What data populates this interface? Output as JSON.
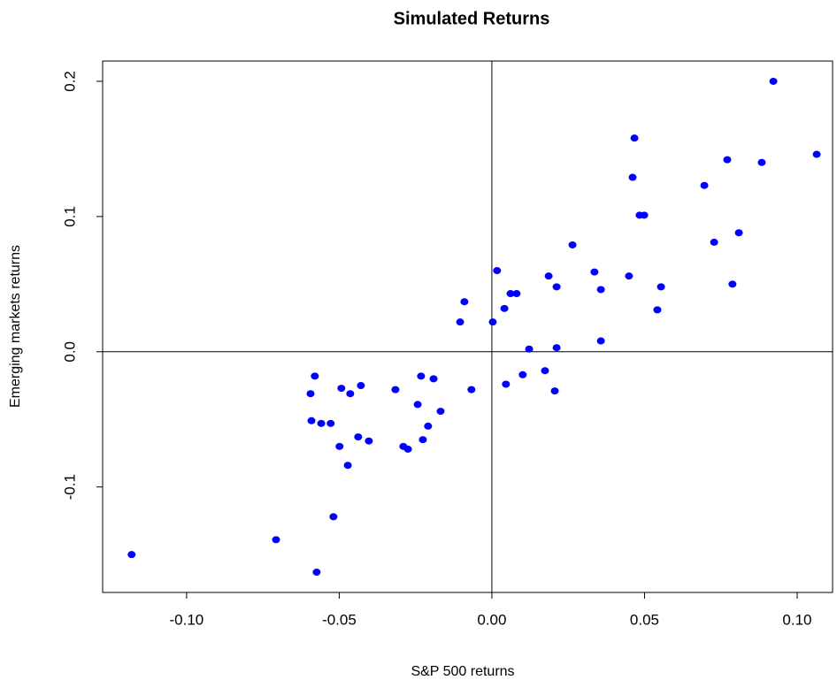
{
  "chart_data": {
    "type": "scatter",
    "title": "Simulated Returns",
    "x_label": "S&P 500 returns",
    "y_label": "Emerging markets returns",
    "color": "#0000ff",
    "x": [
      -0.118,
      -0.0707,
      -0.0574,
      -0.0519,
      -0.0472,
      -0.0499,
      -0.0594,
      -0.058,
      -0.0591,
      -0.0559,
      -0.0528,
      -0.0493,
      -0.0464,
      -0.0429,
      -0.0438,
      -0.0403,
      -0.0316,
      -0.0243,
      -0.0232,
      -0.0191,
      -0.029,
      -0.0275,
      -0.0226,
      -0.0209,
      -0.0168,
      -0.0067,
      -0.0104,
      -0.009,
      0.0003,
      0.0017,
      0.0041,
      0.0061,
      0.0081,
      0.0046,
      0.0101,
      0.0122,
      0.0174,
      0.0186,
      0.0212,
      0.0212,
      0.0206,
      0.0264,
      0.0336,
      0.0357,
      0.0357,
      0.0449,
      0.0461,
      0.0467,
      0.0484,
      0.0499,
      0.0542,
      0.0554,
      0.0696,
      0.0728,
      0.0771,
      0.0788,
      0.0809,
      0.0884,
      0.0922,
      0.1064
    ],
    "values": [
      -0.15,
      -0.139,
      -0.163,
      -0.122,
      -0.084,
      -0.07,
      -0.031,
      -0.018,
      -0.051,
      -0.053,
      -0.053,
      -0.027,
      -0.031,
      -0.025,
      -0.063,
      -0.066,
      -0.028,
      -0.039,
      -0.018,
      -0.02,
      -0.07,
      -0.072,
      -0.065,
      -0.055,
      -0.044,
      -0.028,
      0.022,
      0.037,
      0.022,
      0.06,
      0.032,
      0.043,
      0.043,
      -0.024,
      -0.017,
      0.002,
      -0.014,
      0.056,
      0.048,
      0.003,
      -0.029,
      0.079,
      0.059,
      0.046,
      0.008,
      0.056,
      0.129,
      0.158,
      0.101,
      0.101,
      0.031,
      0.048,
      0.123,
      0.081,
      0.142,
      0.05,
      0.088,
      0.14,
      0.2,
      0.146
    ],
    "xlim": [
      -0.1275,
      0.1116
    ],
    "ylim": [
      -0.178,
      0.215
    ],
    "xticks": [
      {
        "value": -0.1,
        "label": "-0.10"
      },
      -0.05,
      {
        "value": 0,
        "label": "0.00"
      },
      0.05,
      {
        "value": 0.1,
        "label": "0.10"
      }
    ],
    "yticks": [
      -0.1,
      {
        "value": 0,
        "label": "0.0"
      },
      0.1,
      0.2
    ],
    "hline": 0,
    "vline": 0
  }
}
